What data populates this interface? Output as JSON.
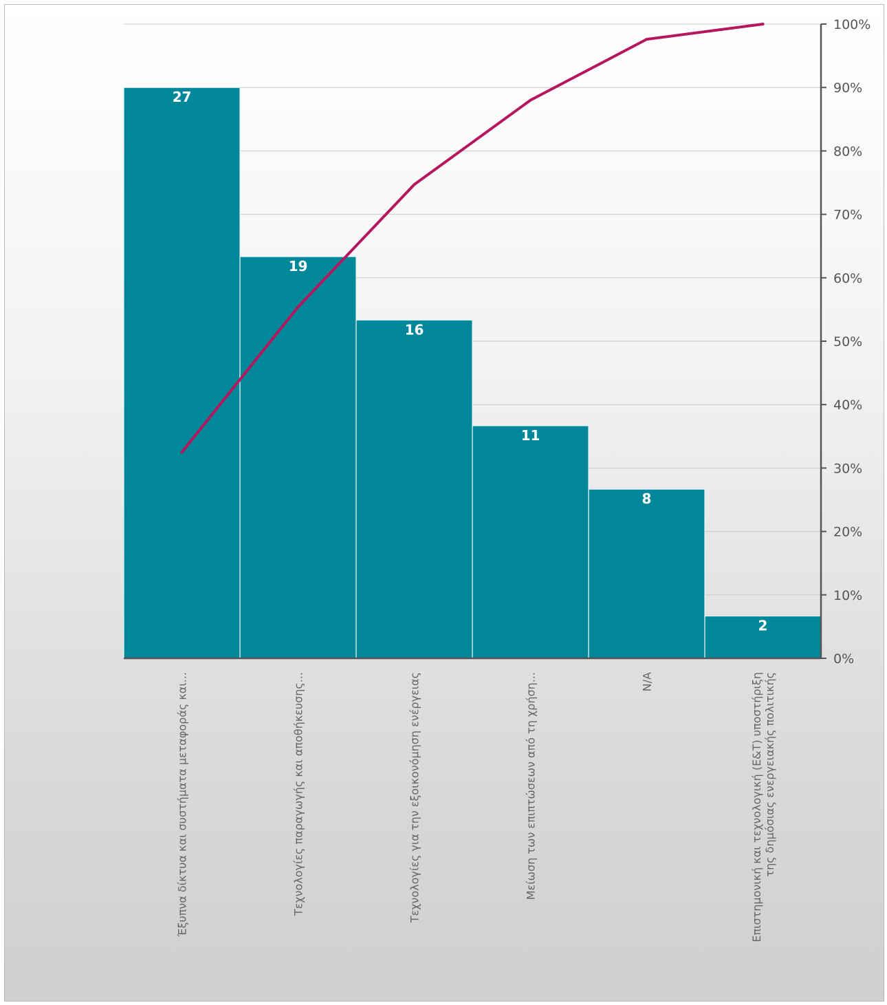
{
  "colors": {
    "bar": "#00889a",
    "line": "#b5175e",
    "grid": "#c8c8c8",
    "axis": "#555555"
  },
  "chart_data": {
    "type": "bar",
    "categories": [
      "Έξυπνα δίκτυα και συστήματα μεταφοράς και...",
      "Τεχνολογίες παραγωγής και αποθήκευσης...",
      "Τεχνολογίες για την εξοικονόμηση ενέργειας",
      "Μείωση των επιπτώσεων από τη χρήση...",
      "N/A",
      "Επιστημονική και τεχνολογική (Ε&Τ) υποστήριξη της δημόσιας ενεργειακής πολιτικής"
    ],
    "category_lines": [
      [
        "Έξυπνα δίκτυα και συστήματα μεταφοράς και..."
      ],
      [
        "Τεχνολογίες παραγωγής και αποθήκευσης..."
      ],
      [
        "Τεχνολογίες για την εξοικονόμηση ενέργειας"
      ],
      [
        "Μείωση των επιπτώσεων από τη χρήση..."
      ],
      [
        "N/A"
      ],
      [
        "Επιστημονική και τεχνολογική (Ε&Τ) υποστήριξη",
        "της δημόσιας ενεργειακής πολιτικής"
      ]
    ],
    "values": [
      27,
      19,
      16,
      11,
      8,
      2
    ],
    "data_labels": [
      "27",
      "19",
      "16",
      "11",
      "8",
      "2"
    ],
    "bar_ylim": [
      0,
      30
    ],
    "line_series": {
      "type": "line",
      "axis": "right",
      "values": [
        32.5,
        55.4,
        74.7,
        88.0,
        97.6,
        100
      ]
    },
    "right_axis": {
      "ticks": [
        "0%",
        "10%",
        "20%",
        "30%",
        "40%",
        "50%",
        "60%",
        "70%",
        "80%",
        "90%",
        "100%"
      ],
      "ylim": [
        0,
        100
      ]
    },
    "grid": true,
    "legend": "none"
  }
}
